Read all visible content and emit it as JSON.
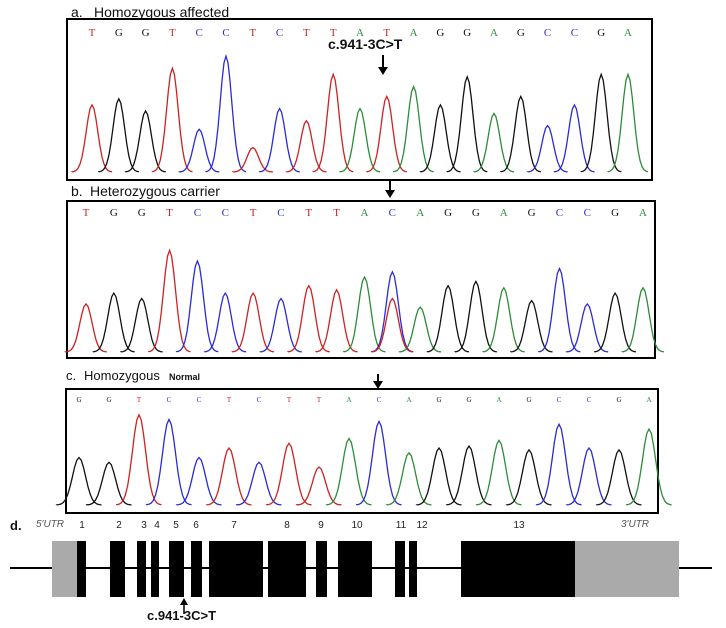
{
  "colors": {
    "A": "#2e8b3a",
    "C": "#2b2bd6",
    "G": "#111111",
    "T": "#cc2222",
    "exon": "#000000",
    "utr": "#aaaaaa"
  },
  "panels": [
    {
      "id": "a",
      "label": "a.",
      "title": "Homozygous affected",
      "title_small": "",
      "sequence": [
        "T",
        "G",
        "G",
        "T",
        "C",
        "C",
        "T",
        "C",
        "T",
        "T",
        "A",
        "T",
        "A",
        "G",
        "G",
        "A",
        "G",
        "C",
        "C",
        "G",
        "A"
      ],
      "mutation_label": "c.941-3C>T",
      "arrow_index": 11
    },
    {
      "id": "b",
      "label": "b.",
      "title": "Heterozygous carrier",
      "title_small": "",
      "sequence": [
        "T",
        "G",
        "G",
        "T",
        "C",
        "C",
        "T",
        "C",
        "T",
        "T",
        "A",
        "C",
        "A",
        "G",
        "G",
        "A",
        "G",
        "C",
        "C",
        "G",
        "A"
      ],
      "mutation_label": "",
      "arrow_index": 11
    },
    {
      "id": "c",
      "label": "c.",
      "title": "Homozygous",
      "title_small": "Normal",
      "sequence": [
        "G",
        "G",
        "T",
        "C",
        "C",
        "T",
        "C",
        "T",
        "T",
        "A",
        "C",
        "A",
        "G",
        "G",
        "A",
        "G",
        "C",
        "C",
        "G",
        "A"
      ],
      "mutation_label": "",
      "arrow_index": 10
    }
  ],
  "gene": {
    "label": "d.",
    "utr5": "5'UTR",
    "utr3": "3'UTR",
    "exon_labels": [
      "1",
      "2",
      "3",
      "4",
      "5",
      "6",
      "7",
      "8",
      "9",
      "10",
      "11",
      "12",
      "13"
    ],
    "mutation_label": "c.941-3C>T"
  }
}
